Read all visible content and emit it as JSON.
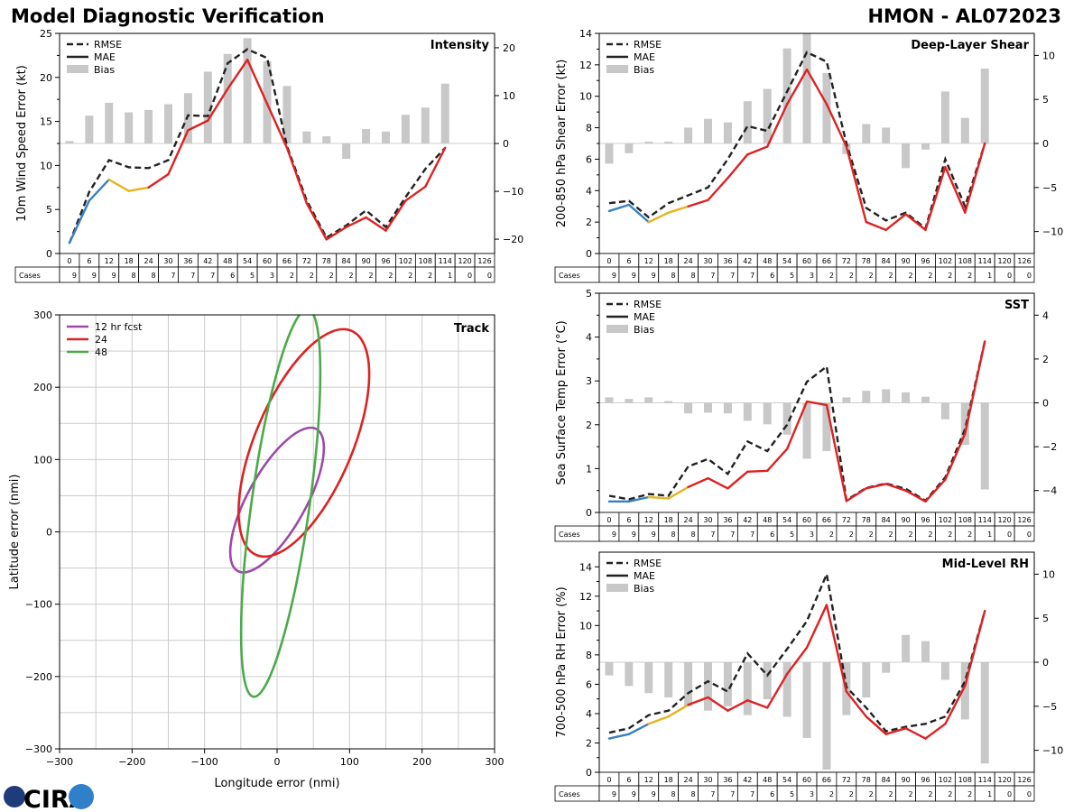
{
  "header": {
    "title": "Model Diagnostic Verification",
    "storm": "HMON - AL072023"
  },
  "logo": {
    "text": "CIRA"
  },
  "colors": {
    "rmse": "#222222",
    "mae_early_blue": "#3a7fbf",
    "mae_mid_yellow": "#e6b422",
    "mae_red": "#dd2222",
    "bias": "#c8c8c8",
    "fcst12": "#9b4aa8",
    "fcst24": "#dd2222",
    "fcst48": "#4aaa4a",
    "grid": "#cccccc"
  },
  "lead_times": [
    "0",
    "6",
    "12",
    "18",
    "24",
    "30",
    "36",
    "42",
    "48",
    "54",
    "60",
    "66",
    "72",
    "78",
    "84",
    "90",
    "96",
    "102",
    "108",
    "114",
    "120",
    "126"
  ],
  "cases_label": "Cases",
  "cases": [
    "9",
    "9",
    "9",
    "8",
    "8",
    "7",
    "7",
    "7",
    "6",
    "5",
    "3",
    "2",
    "2",
    "2",
    "2",
    "2",
    "2",
    "2",
    "2",
    "1",
    "0",
    "0"
  ],
  "chart_data": [
    {
      "id": "intensity",
      "type": "line",
      "title": "Intensity",
      "ylabel": "10m Wind Speed Error (kt)",
      "ylim": [
        0,
        25
      ],
      "yticks": [
        "0",
        "5",
        "10",
        "15",
        "20",
        "25"
      ],
      "y2lim": [
        -23,
        23
      ],
      "y2ticks": [
        "−20",
        "−10",
        "0",
        "10",
        "20"
      ],
      "legend": [
        "RMSE",
        "MAE",
        "Bias"
      ],
      "rmse": [
        1.2,
        7.0,
        10.6,
        9.8,
        9.7,
        10.6,
        15.7,
        15.6,
        21.6,
        23.2,
        22.2,
        12.2,
        6.0,
        1.8,
        3.2,
        4.9,
        3.0,
        6.4,
        9.6,
        12.0
      ],
      "mae": [
        1.2,
        6.0,
        8.4,
        7.1,
        7.5,
        9.0,
        14.0,
        15.1,
        18.7,
        22.0,
        17.0,
        12.0,
        5.7,
        1.6,
        3.0,
        4.1,
        2.6,
        6.0,
        7.6,
        12.0
      ],
      "bias": [
        0.5,
        5.8,
        8.5,
        6.5,
        7.0,
        8.2,
        10.5,
        15.0,
        18.7,
        22.0,
        17.2,
        12.0,
        2.5,
        1.5,
        -3.2,
        3.0,
        2.5,
        6.0,
        7.5,
        12.5
      ]
    },
    {
      "id": "shear",
      "type": "line",
      "title": "Deep-Layer Shear",
      "ylabel": "200-850 hPa Shear Error (kt)",
      "ylim": [
        0,
        14
      ],
      "yticks": [
        "0",
        "2",
        "4",
        "6",
        "8",
        "10",
        "12",
        "14"
      ],
      "y2lim": [
        -12.5,
        12.5
      ],
      "y2ticks": [
        "−10",
        "−5",
        "0",
        "5",
        "10"
      ],
      "legend": [
        "RMSE",
        "MAE",
        "Bias"
      ],
      "rmse": [
        3.2,
        3.35,
        2.3,
        3.2,
        3.7,
        4.2,
        6.0,
        8.1,
        7.8,
        10.3,
        12.8,
        12.2,
        7.0,
        2.9,
        2.1,
        2.6,
        1.6,
        6.0,
        3.0,
        7.0
      ],
      "mae": [
        2.7,
        3.1,
        2.0,
        2.6,
        3.0,
        3.4,
        4.8,
        6.3,
        6.8,
        9.5,
        11.7,
        9.5,
        6.8,
        2.0,
        1.5,
        2.5,
        1.5,
        5.5,
        2.6,
        7.0
      ],
      "bias": [
        -2.3,
        -1.1,
        0.2,
        0.2,
        1.8,
        2.8,
        2.4,
        4.8,
        6.2,
        10.8,
        12.5,
        8.0,
        -1.2,
        2.2,
        1.8,
        -2.8,
        -0.7,
        5.9,
        2.9,
        8.5
      ]
    },
    {
      "id": "sst",
      "type": "line",
      "title": "SST",
      "ylabel": "Sea Surface Temp Error (°C)",
      "ylim": [
        0,
        5
      ],
      "yticks": [
        "0",
        "1",
        "2",
        "3",
        "4",
        "5"
      ],
      "y2lim": [
        -5,
        5
      ],
      "y2ticks": [
        "−4",
        "−2",
        "0",
        "2",
        "4"
      ],
      "legend": [
        "RMSE",
        "MAE",
        "Bias"
      ],
      "rmse": [
        0.38,
        0.3,
        0.42,
        0.38,
        1.05,
        1.22,
        0.88,
        1.62,
        1.4,
        2.0,
        2.98,
        3.33,
        0.28,
        0.56,
        0.66,
        0.54,
        0.27,
        0.8,
        1.9,
        3.9
      ],
      "mae": [
        0.25,
        0.25,
        0.35,
        0.32,
        0.58,
        0.78,
        0.55,
        0.93,
        0.95,
        1.45,
        2.53,
        2.45,
        0.26,
        0.55,
        0.65,
        0.5,
        0.25,
        0.75,
        1.8,
        3.9
      ],
      "bias": [
        0.25,
        0.18,
        0.25,
        0.08,
        -0.48,
        -0.45,
        -0.48,
        -0.82,
        -0.98,
        -1.45,
        -2.55,
        -2.2,
        0.25,
        0.55,
        0.62,
        0.48,
        0.28,
        -0.75,
        -1.92,
        -3.95
      ]
    },
    {
      "id": "rh",
      "type": "line",
      "title": "Mid-Level RH",
      "ylabel": "700-500 hPa RH Error (%)",
      "ylim": [
        0,
        15
      ],
      "yticks": [
        "0",
        "2",
        "4",
        "6",
        "8",
        "10",
        "12",
        "14"
      ],
      "y2lim": [
        -12.5,
        12.5
      ],
      "y2ticks": [
        "−10",
        "−5",
        "0",
        "5",
        "10"
      ],
      "legend": [
        "RMSE",
        "MAE",
        "Bias"
      ],
      "rmse": [
        2.7,
        3.0,
        3.9,
        4.2,
        5.4,
        6.2,
        5.5,
        8.1,
        6.6,
        8.4,
        10.3,
        13.5,
        5.8,
        4.4,
        2.8,
        3.1,
        3.3,
        3.8,
        6.2,
        11.0
      ],
      "mae": [
        2.3,
        2.6,
        3.3,
        3.8,
        4.6,
        5.1,
        4.2,
        4.9,
        4.4,
        6.7,
        8.5,
        11.4,
        5.5,
        3.8,
        2.6,
        3.0,
        2.3,
        3.3,
        5.9,
        11.0
      ],
      "bias": [
        -1.5,
        -2.7,
        -3.5,
        -4.0,
        -5.0,
        -5.5,
        -5.0,
        -6.0,
        -4.2,
        -6.2,
        -8.6,
        -12.2,
        -6.0,
        -4.0,
        -1.2,
        3.1,
        2.4,
        -2.0,
        -6.5,
        -11.5
      ]
    },
    {
      "id": "track",
      "type": "ellipse",
      "title": "Track",
      "xlabel": "Longitude error (nmi)",
      "ylabel": "Latitude error (nmi)",
      "xlim": [
        -300,
        300
      ],
      "ylim": [
        -300,
        300
      ],
      "xticks": [
        "−300",
        "−200",
        "−100",
        "0",
        "100",
        "200",
        "300"
      ],
      "yticks": [
        "−300",
        "−200",
        "−100",
        "0",
        "100",
        "200",
        "300"
      ],
      "legend": [
        "12 hr fcst",
        "24",
        "48"
      ],
      "ellipses": [
        {
          "label": "12 hr fcst",
          "cx": 0,
          "cy": 44,
          "a": 112,
          "b": 40,
          "angle_deg": 61
        },
        {
          "label": "24",
          "cx": 37,
          "cy": 123,
          "a": 168,
          "b": 67,
          "angle_deg": 67
        },
        {
          "label": "48",
          "cx": 5,
          "cy": 40,
          "a": 270,
          "b": 40,
          "angle_deg": 82
        }
      ]
    }
  ]
}
